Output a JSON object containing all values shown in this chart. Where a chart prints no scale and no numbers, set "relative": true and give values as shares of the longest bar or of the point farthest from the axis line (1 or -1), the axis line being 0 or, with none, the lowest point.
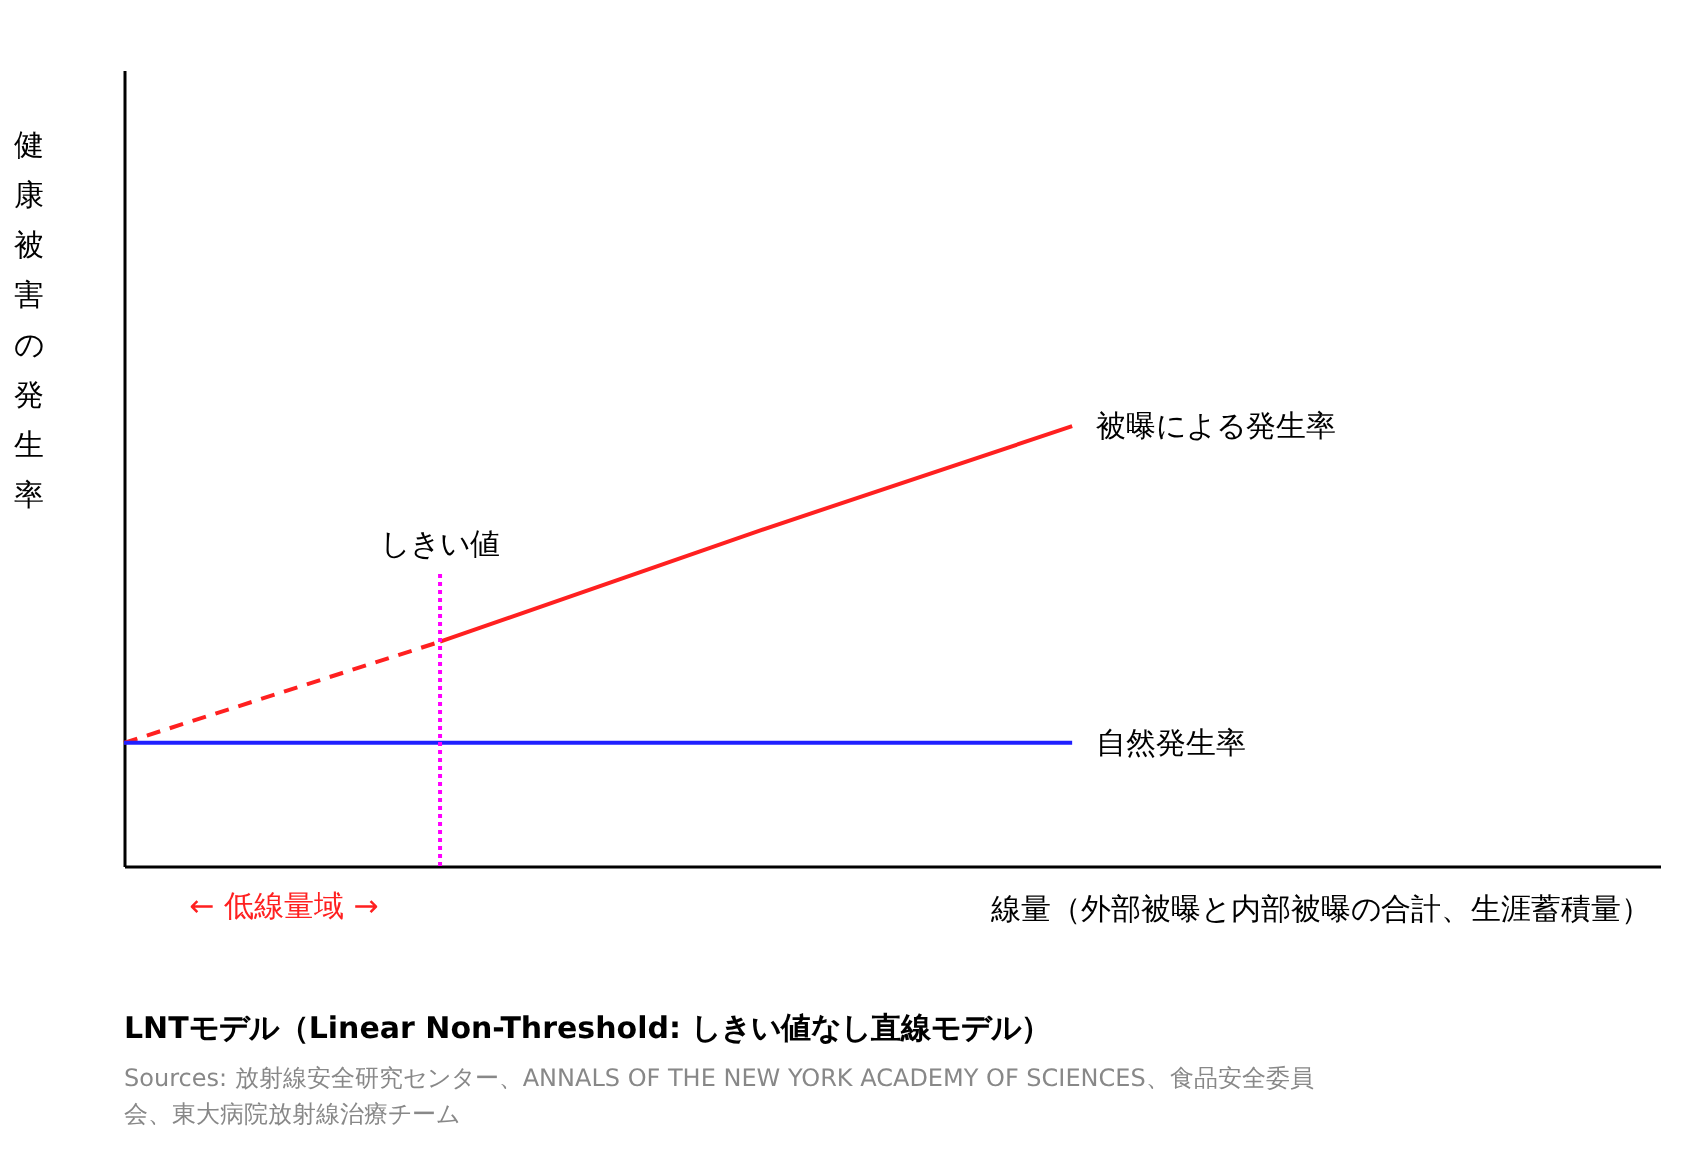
{
  "chart_data": {
    "type": "line",
    "title": "LNTモデル（Linear Non-Threshold: しきい値なし直線モデル）",
    "xlabel": "線量（外部被曝と内部被曝の合計、生涯蓄積量）",
    "ylabel": "健康被害の発生率",
    "categories": [
      null,
      null,
      null,
      null
    ],
    "relative": true,
    "grid": false,
    "series": [
      {
        "color": "#ff2020",
        "values": [
          0.28,
          0.51,
          null,
          null
        ],
        "line_style": "dashed"
      },
      {
        "name": "被曝による発生率",
        "color": "#ff2020",
        "values": [
          null,
          0.51,
          0.76,
          1
        ],
        "line_style": "solid"
      },
      {
        "name": "自然発生率",
        "color": "#2020ff",
        "values": [
          0.28,
          0.28,
          0.28,
          0.28
        ],
        "line_style": "solid"
      }
    ],
    "ref_lines": [
      {
        "axis": "x",
        "label": "しきい値",
        "color": "#ff00ff",
        "line_style": "dotted"
      }
    ],
    "annotations": [
      "← 低線量域 →",
      "Sources: 放射線安全研究センター、ANNALS OF THE NEW YORK ACADEMY OF SCIENCES、食品安全委員会、東大病院放射線治療チーム"
    ]
  }
}
